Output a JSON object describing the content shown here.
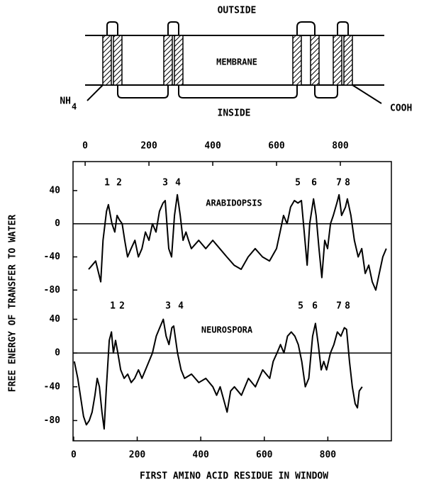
{
  "diagram": {
    "outside": "OUTSIDE",
    "membrane": "MEMBRANE",
    "inside": "INSIDE",
    "n_terminus": "NH",
    "n_subscript": "4",
    "c_terminus": "COOH"
  },
  "chart_data": [
    {
      "type": "line",
      "y_label": "FREE ENERGY OF TRANSFER TO WATER",
      "x": [
        11,
        22,
        33,
        49,
        56,
        67,
        73,
        84,
        93,
        100,
        107,
        116,
        124,
        133,
        144,
        156,
        167,
        178,
        189,
        200,
        211,
        222,
        233,
        244,
        251,
        262,
        271,
        280,
        289,
        298,
        307,
        316,
        324,
        333,
        356,
        378,
        400,
        422,
        444,
        467,
        489,
        511,
        533,
        556,
        578,
        600,
        611,
        622,
        633,
        644,
        656,
        667,
        678,
        689,
        696,
        704,
        716,
        724,
        733,
        742,
        751,
        760,
        769,
        778,
        789,
        796,
        804,
        816,
        822,
        833,
        844,
        856,
        867,
        878,
        889,
        900,
        911,
        922,
        933,
        944
      ],
      "series": [
        {
          "name": "ARABIDOPSIS",
          "color": "#000000",
          "values": [
            -55,
            -50,
            -45,
            -70,
            -20,
            15,
            23,
            0,
            -10,
            10,
            5,
            0,
            -20,
            -40,
            -30,
            -20,
            -40,
            -30,
            -10,
            -20,
            0,
            -10,
            15,
            25,
            28,
            -30,
            -40,
            10,
            35,
            10,
            -20,
            -10,
            -20,
            -30,
            -20,
            -30,
            -20,
            -30,
            -40,
            -50,
            -55,
            -40,
            -30,
            -40,
            -45,
            -30,
            -10,
            10,
            0,
            20,
            28,
            25,
            28,
            -20,
            -50,
            0,
            30,
            10,
            -30,
            -65,
            -20,
            -30,
            0,
            10,
            25,
            35,
            10,
            20,
            30,
            10,
            -20,
            -40,
            -30,
            -60,
            -50,
            -70,
            -80,
            -60,
            -40,
            -30
          ]
        }
      ],
      "peak_labels": [
        "1",
        "2",
        "3",
        "4",
        "5",
        "6",
        "7",
        "8"
      ],
      "hline": 0,
      "xlim": [
        -38,
        960
      ],
      "xticks": [
        0,
        200,
        400,
        600,
        800
      ],
      "ylim": [
        -102,
        75
      ],
      "yticks": [
        40,
        0,
        -40,
        -80
      ]
    },
    {
      "type": "line",
      "x_label": "FIRST AMINO ACID RESIDUE IN WINDOW",
      "x": [
        2,
        13,
        25,
        31,
        40,
        49,
        58,
        67,
        74,
        81,
        89,
        96,
        103,
        112,
        119,
        125,
        132,
        139,
        148,
        159,
        170,
        181,
        192,
        204,
        215,
        226,
        237,
        248,
        260,
        271,
        282,
        291,
        300,
        309,
        315,
        327,
        338,
        349,
        371,
        394,
        416,
        438,
        450,
        461,
        472,
        483,
        494,
        506,
        528,
        550,
        572,
        595,
        617,
        628,
        640,
        651,
        662,
        673,
        685,
        696,
        707,
        718,
        729,
        740,
        752,
        761,
        770,
        779,
        787,
        796,
        808,
        819,
        830,
        841,
        852,
        859,
        868,
        877,
        886,
        893,
        899,
        908
      ],
      "series": [
        {
          "name": "NEUROSPORA",
          "color": "#000000",
          "values": [
            -10,
            -30,
            -60,
            -75,
            -85,
            -80,
            -70,
            -50,
            -30,
            -40,
            -70,
            -90,
            -40,
            15,
            25,
            0,
            15,
            0,
            -20,
            -30,
            -25,
            -35,
            -30,
            -20,
            -30,
            -20,
            -10,
            0,
            20,
            30,
            40,
            20,
            10,
            30,
            32,
            0,
            -20,
            -30,
            -25,
            -35,
            -30,
            -40,
            -50,
            -40,
            -55,
            -70,
            -45,
            -40,
            -50,
            -30,
            -40,
            -20,
            -30,
            -10,
            0,
            10,
            0,
            20,
            25,
            20,
            10,
            -10,
            -40,
            -30,
            20,
            35,
            10,
            -20,
            -10,
            -20,
            0,
            10,
            25,
            20,
            30,
            28,
            -10,
            -40,
            -60,
            -65,
            -45,
            -40
          ]
        }
      ],
      "peak_labels": [
        "1",
        "2",
        "3",
        "4",
        "5",
        "6",
        "7",
        "8"
      ],
      "hline": 0,
      "xlim": [
        -2,
        1000
      ],
      "xticks": [
        0,
        200,
        400,
        600,
        800
      ],
      "ylim": [
        -104,
        53
      ],
      "yticks": [
        40,
        0,
        -40,
        -80
      ]
    }
  ]
}
